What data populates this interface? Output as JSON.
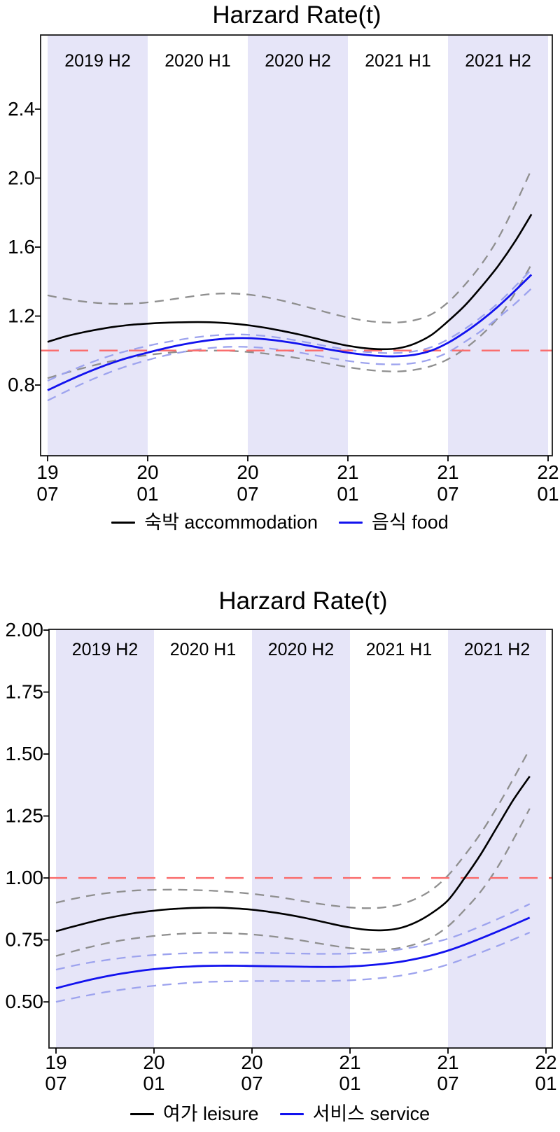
{
  "page": {
    "background": "#ffffff"
  },
  "colors": {
    "band_fill": "#e6e5f8",
    "plot_border": "#1a1a1a",
    "baseline_red": "#fa6e6e",
    "black_series": "#000000",
    "blue_series": "#1212ee",
    "gray_ci": "#8f8f8f",
    "blue_ci": "#9da3ee"
  },
  "chart_data": [
    {
      "type": "line",
      "title": "Harzard Rate(t)",
      "xlabel": "",
      "ylabel": "",
      "ylim": [
        0.39,
        2.83
      ],
      "grid": false,
      "legend_position": "bottom",
      "baseline": {
        "value": 1.0,
        "color": "#fa6e6e",
        "style": "dashed"
      },
      "y_ticks": [
        0.8,
        1.2,
        1.6,
        2.0,
        2.4
      ],
      "y_tick_labels": [
        "0.8",
        "1.2",
        "1.6",
        "2.0",
        "2.4"
      ],
      "x_tick_labels": [
        [
          "19",
          "07"
        ],
        [
          "20",
          "01"
        ],
        [
          "20",
          "07"
        ],
        [
          "21",
          "01"
        ],
        [
          "21",
          "07"
        ],
        [
          "22",
          "01"
        ]
      ],
      "bands": [
        {
          "label": "2019 H2",
          "shaded": true
        },
        {
          "label": "2020 H1",
          "shaded": false
        },
        {
          "label": "2020 H2",
          "shaded": true
        },
        {
          "label": "2021 H1",
          "shaded": false
        },
        {
          "label": "2021 H2",
          "shaded": true
        }
      ],
      "x": [
        "2019-07",
        "2019-08",
        "2019-09",
        "2019-10",
        "2019-11",
        "2019-12",
        "2020-01",
        "2020-02",
        "2020-03",
        "2020-04",
        "2020-05",
        "2020-06",
        "2020-07",
        "2020-08",
        "2020-09",
        "2020-10",
        "2020-11",
        "2020-12",
        "2021-01",
        "2021-02",
        "2021-03",
        "2021-04",
        "2021-05",
        "2021-06",
        "2021-07",
        "2021-08",
        "2021-09",
        "2021-10",
        "2021-11",
        "2021-12"
      ],
      "series": [
        {
          "name": "숙박 accommodation",
          "role": "estimate",
          "color": "#000000",
          "style": "solid",
          "values": [
            1.05,
            1.08,
            1.103,
            1.122,
            1.138,
            1.149,
            1.156,
            1.161,
            1.164,
            1.165,
            1.163,
            1.157,
            1.147,
            1.133,
            1.115,
            1.095,
            1.072,
            1.048,
            1.028,
            1.014,
            1.008,
            1.013,
            1.04,
            1.09,
            1.17,
            1.26,
            1.37,
            1.49,
            1.63,
            1.79
          ]
        },
        {
          "name": "숙박 accommodation CI upper",
          "role": "ci-upper",
          "color": "#8f8f8f",
          "style": "dashed",
          "values": [
            1.32,
            1.301,
            1.286,
            1.276,
            1.271,
            1.272,
            1.279,
            1.291,
            1.305,
            1.319,
            1.329,
            1.331,
            1.325,
            1.311,
            1.291,
            1.267,
            1.241,
            1.215,
            1.192,
            1.174,
            1.164,
            1.163,
            1.176,
            1.21,
            1.28,
            1.38,
            1.5,
            1.65,
            1.84,
            2.05
          ]
        },
        {
          "name": "숙박 accommodation CI lower",
          "role": "ci-lower",
          "color": "#8f8f8f",
          "style": "dashed",
          "values": [
            0.84,
            0.868,
            0.895,
            0.92,
            0.942,
            0.96,
            0.974,
            0.985,
            0.993,
            0.998,
            1.0,
            0.998,
            0.992,
            0.983,
            0.971,
            0.956,
            0.939,
            0.921,
            0.904,
            0.89,
            0.881,
            0.879,
            0.888,
            0.91,
            0.95,
            1.01,
            1.09,
            1.19,
            1.33,
            1.5
          ]
        },
        {
          "name": "음식 food",
          "role": "estimate",
          "color": "#1212ee",
          "style": "solid",
          "values": [
            0.77,
            0.815,
            0.858,
            0.898,
            0.933,
            0.963,
            0.988,
            1.012,
            1.033,
            1.05,
            1.063,
            1.071,
            1.072,
            1.066,
            1.055,
            1.04,
            1.022,
            1.004,
            0.988,
            0.976,
            0.968,
            0.967,
            0.976,
            1.0,
            1.045,
            1.105,
            1.175,
            1.255,
            1.345,
            1.44
          ]
        },
        {
          "name": "음식 food CI upper",
          "role": "ci-upper",
          "color": "#9da3ee",
          "style": "dashed",
          "values": [
            0.825,
            0.868,
            0.908,
            0.945,
            0.977,
            1.004,
            1.027,
            1.047,
            1.064,
            1.078,
            1.088,
            1.093,
            1.092,
            1.085,
            1.073,
            1.057,
            1.039,
            1.021,
            1.005,
            0.993,
            0.986,
            0.986,
            0.996,
            1.02,
            1.065,
            1.125,
            1.195,
            1.275,
            1.37,
            1.47
          ]
        },
        {
          "name": "음식 food CI lower",
          "role": "ci-lower",
          "color": "#9da3ee",
          "style": "dashed",
          "values": [
            0.71,
            0.758,
            0.804,
            0.846,
            0.884,
            0.917,
            0.945,
            0.97,
            0.99,
            1.006,
            1.017,
            1.022,
            1.021,
            1.015,
            1.004,
            0.99,
            0.973,
            0.956,
            0.94,
            0.928,
            0.921,
            0.92,
            0.928,
            0.95,
            0.99,
            1.05,
            1.115,
            1.19,
            1.27,
            1.36
          ]
        }
      ],
      "legend": [
        {
          "label": "숙박 accommodation",
          "color": "#000000"
        },
        {
          "label": "음식 food",
          "color": "#1212ee"
        }
      ]
    },
    {
      "type": "line",
      "title": "Harzard Rate(t)",
      "xlabel": "",
      "ylabel": "",
      "ylim": [
        0.314,
        2.003
      ],
      "grid": false,
      "legend_position": "bottom",
      "baseline": {
        "value": 1.0,
        "color": "#fa6e6e",
        "style": "dashed"
      },
      "y_ticks": [
        0.5,
        0.75,
        1.0,
        1.25,
        1.5,
        1.75,
        2.0
      ],
      "y_tick_labels": [
        "0.50",
        "0.75",
        "1.00",
        "1.25",
        "1.50",
        "1.75",
        "2.00"
      ],
      "x_tick_labels": [
        [
          "19",
          "07"
        ],
        [
          "20",
          "01"
        ],
        [
          "20",
          "07"
        ],
        [
          "21",
          "01"
        ],
        [
          "21",
          "07"
        ],
        [
          "22",
          "01"
        ]
      ],
      "bands": [
        {
          "label": "2019 H2",
          "shaded": true
        },
        {
          "label": "2020 H1",
          "shaded": false
        },
        {
          "label": "2020 H2",
          "shaded": true
        },
        {
          "label": "2021 H1",
          "shaded": false
        },
        {
          "label": "2021 H2",
          "shaded": true
        }
      ],
      "x": [
        "2019-07",
        "2019-08",
        "2019-09",
        "2019-10",
        "2019-11",
        "2019-12",
        "2020-01",
        "2020-02",
        "2020-03",
        "2020-04",
        "2020-05",
        "2020-06",
        "2020-07",
        "2020-08",
        "2020-09",
        "2020-10",
        "2020-11",
        "2020-12",
        "2021-01",
        "2021-02",
        "2021-03",
        "2021-04",
        "2021-05",
        "2021-06",
        "2021-07",
        "2021-08",
        "2021-09",
        "2021-10",
        "2021-11",
        "2021-12"
      ],
      "series": [
        {
          "name": "여가 leisure",
          "role": "estimate",
          "color": "#000000",
          "style": "solid",
          "values": [
            0.785,
            0.803,
            0.82,
            0.836,
            0.849,
            0.86,
            0.868,
            0.874,
            0.878,
            0.88,
            0.88,
            0.877,
            0.872,
            0.864,
            0.854,
            0.842,
            0.828,
            0.813,
            0.8,
            0.791,
            0.789,
            0.797,
            0.82,
            0.858,
            0.91,
            0.998,
            1.095,
            1.205,
            1.315,
            1.41
          ]
        },
        {
          "name": "여가 leisure CI upper",
          "role": "ci-upper",
          "color": "#8f8f8f",
          "style": "dashed",
          "values": [
            0.9,
            0.915,
            0.928,
            0.938,
            0.945,
            0.95,
            0.952,
            0.953,
            0.952,
            0.95,
            0.947,
            0.942,
            0.936,
            0.928,
            0.919,
            0.908,
            0.897,
            0.888,
            0.881,
            0.878,
            0.881,
            0.892,
            0.915,
            0.952,
            1.01,
            1.09,
            1.18,
            1.285,
            1.4,
            1.52
          ]
        },
        {
          "name": "여가 leisure CI lower",
          "role": "ci-lower",
          "color": "#8f8f8f",
          "style": "dashed",
          "values": [
            0.685,
            0.703,
            0.72,
            0.735,
            0.748,
            0.758,
            0.766,
            0.772,
            0.776,
            0.778,
            0.778,
            0.776,
            0.772,
            0.766,
            0.758,
            0.748,
            0.737,
            0.726,
            0.717,
            0.712,
            0.711,
            0.717,
            0.733,
            0.76,
            0.805,
            0.87,
            0.945,
            1.04,
            1.155,
            1.28
          ]
        },
        {
          "name": "서비스 service",
          "role": "estimate",
          "color": "#1212ee",
          "style": "solid",
          "values": [
            0.555,
            0.572,
            0.588,
            0.602,
            0.614,
            0.624,
            0.632,
            0.638,
            0.642,
            0.645,
            0.646,
            0.646,
            0.645,
            0.644,
            0.643,
            0.642,
            0.641,
            0.641,
            0.643,
            0.647,
            0.653,
            0.661,
            0.673,
            0.688,
            0.707,
            0.73,
            0.756,
            0.783,
            0.811,
            0.84
          ]
        },
        {
          "name": "서비스 service CI upper",
          "role": "ci-upper",
          "color": "#9da3ee",
          "style": "dashed",
          "values": [
            0.63,
            0.645,
            0.658,
            0.668,
            0.677,
            0.684,
            0.689,
            0.693,
            0.696,
            0.698,
            0.699,
            0.699,
            0.698,
            0.697,
            0.696,
            0.695,
            0.694,
            0.694,
            0.695,
            0.698,
            0.703,
            0.711,
            0.722,
            0.737,
            0.755,
            0.778,
            0.805,
            0.833,
            0.863,
            0.895
          ]
        },
        {
          "name": "서비스 service CI lower",
          "role": "ci-lower",
          "color": "#9da3ee",
          "style": "dashed",
          "values": [
            0.5,
            0.514,
            0.527,
            0.539,
            0.549,
            0.558,
            0.565,
            0.571,
            0.576,
            0.58,
            0.582,
            0.583,
            0.584,
            0.584,
            0.584,
            0.584,
            0.584,
            0.585,
            0.587,
            0.591,
            0.597,
            0.605,
            0.617,
            0.632,
            0.651,
            0.674,
            0.699,
            0.725,
            0.752,
            0.78
          ]
        }
      ],
      "legend": [
        {
          "label": "여가 leisure",
          "color": "#000000"
        },
        {
          "label": "서비스 service",
          "color": "#1212ee"
        }
      ]
    }
  ]
}
